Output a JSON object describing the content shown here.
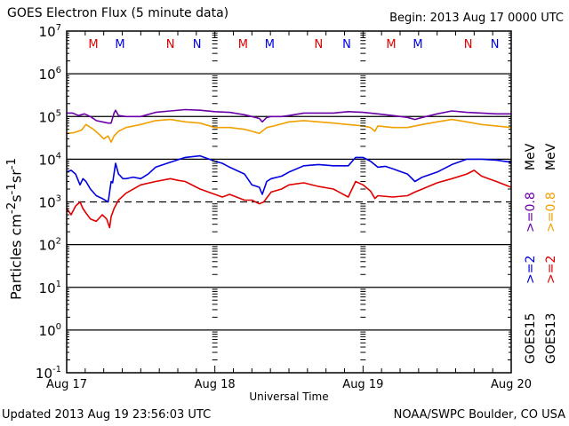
{
  "header": {
    "title": "GOES Electron Flux (5 minute data)",
    "begin": "Begin: 2013 Aug 17 0000 UTC"
  },
  "footer": {
    "updated": "Updated 2013 Aug 19 23:56:03 UTC",
    "credit": "NOAA/SWPC Boulder, CO USA"
  },
  "chart_data": {
    "type": "line",
    "title": "GOES Electron Flux (5 minute data)",
    "xlabel": "Universal Time",
    "ylabel": "Particles cm-2s-1sr-1",
    "yscale": "log",
    "ylim": [
      0.1,
      10000000
    ],
    "xlim": [
      0,
      3
    ],
    "x_units": "days since 2013 Aug 17 0000 UTC",
    "x_ticks": [
      {
        "value": 0,
        "label": "Aug 17"
      },
      {
        "value": 1,
        "label": "Aug 18"
      },
      {
        "value": 2,
        "label": "Aug 19"
      },
      {
        "value": 3,
        "label": "Aug 20"
      }
    ],
    "y_ticks": [
      {
        "exp": 7,
        "label": "10",
        "sup": "7"
      },
      {
        "exp": 6,
        "label": "10",
        "sup": "6"
      },
      {
        "exp": 5,
        "label": "10",
        "sup": "5"
      },
      {
        "exp": 4,
        "label": "10",
        "sup": "4"
      },
      {
        "exp": 3,
        "label": "10",
        "sup": "3"
      },
      {
        "exp": 2,
        "label": "10",
        "sup": "2"
      },
      {
        "exp": 1,
        "label": "10",
        "sup": "1"
      },
      {
        "exp": 0,
        "label": "10",
        "sup": "0"
      },
      {
        "exp": -1,
        "label": "10",
        "sup": "-1"
      }
    ],
    "grid": {
      "solid_decades": [
        6,
        5,
        4,
        2,
        1,
        0
      ],
      "dashed_decades": [
        3
      ]
    },
    "markers": [
      {
        "x": 0.18,
        "label": "M",
        "color": "#e00000"
      },
      {
        "x": 0.36,
        "label": "M",
        "color": "#0000e0"
      },
      {
        "x": 0.7,
        "label": "N",
        "color": "#e00000"
      },
      {
        "x": 0.88,
        "label": "N",
        "color": "#0000e0"
      },
      {
        "x": 1.19,
        "label": "M",
        "color": "#e00000"
      },
      {
        "x": 1.37,
        "label": "M",
        "color": "#0000e0"
      },
      {
        "x": 1.7,
        "label": "N",
        "color": "#e00000"
      },
      {
        "x": 1.89,
        "label": "N",
        "color": "#0000e0"
      },
      {
        "x": 2.19,
        "label": "M",
        "color": "#e00000"
      },
      {
        "x": 2.37,
        "label": "M",
        "color": "#0000e0"
      },
      {
        "x": 2.71,
        "label": "N",
        "color": "#e00000"
      },
      {
        "x": 2.89,
        "label": "N",
        "color": "#0000e0"
      }
    ],
    "legend": {
      "placement": "right",
      "entries": [
        {
          "text": "GOES15",
          "color": "#000000"
        },
        {
          "text": "GOES13",
          "color": "#000000"
        },
        {
          "text": ">=2",
          "color": "#0000e0"
        },
        {
          "text": ">=2",
          "color": "#e00000"
        },
        {
          "text": ">=0.8",
          "color": "#6a00a8"
        },
        {
          "text": ">=0.8",
          "color": "#f0a000"
        },
        {
          "text": "MeV",
          "color": "#000000"
        },
        {
          "text": "MeV",
          "color": "#000000"
        }
      ]
    },
    "series": [
      {
        "name": "GOES15 >=0.8 MeV",
        "color": "#6a00a8",
        "x": [
          0,
          0.04,
          0.08,
          0.12,
          0.16,
          0.2,
          0.24,
          0.28,
          0.3,
          0.32,
          0.33,
          0.35,
          0.4,
          0.5,
          0.6,
          0.7,
          0.8,
          0.9,
          1.0,
          1.1,
          1.2,
          1.25,
          1.3,
          1.32,
          1.35,
          1.38,
          1.45,
          1.5,
          1.6,
          1.7,
          1.8,
          1.9,
          2.0,
          2.1,
          2.2,
          2.3,
          2.35,
          2.4,
          2.5,
          2.6,
          2.7,
          2.8,
          2.9,
          3.0
        ],
        "y": [
          120000.0,
          120000.0,
          105000.0,
          115000.0,
          100000.0,
          80000.0,
          75000.0,
          70000.0,
          70000.0,
          120000.0,
          140000.0,
          105000.0,
          100000.0,
          100000.0,
          125000.0,
          135000.0,
          145000.0,
          140000.0,
          130000.0,
          125000.0,
          110000.0,
          100000.0,
          90000.0,
          75000.0,
          95000.0,
          100000.0,
          100000.0,
          105000.0,
          120000.0,
          120000.0,
          120000.0,
          130000.0,
          125000.0,
          115000.0,
          105000.0,
          95000.0,
          85000.0,
          95000.0,
          115000.0,
          135000.0,
          125000.0,
          120000.0,
          115000.0,
          115000.0
        ]
      },
      {
        "name": "GOES13 >=0.8 MeV",
        "color": "#f0a000",
        "x": [
          0,
          0.05,
          0.1,
          0.13,
          0.18,
          0.22,
          0.25,
          0.28,
          0.3,
          0.32,
          0.35,
          0.4,
          0.5,
          0.6,
          0.7,
          0.8,
          0.9,
          1.0,
          1.1,
          1.2,
          1.25,
          1.3,
          1.35,
          1.4,
          1.5,
          1.6,
          1.7,
          1.8,
          1.9,
          2.0,
          2.05,
          2.08,
          2.1,
          2.2,
          2.3,
          2.4,
          2.5,
          2.6,
          2.7,
          2.8,
          2.9,
          3.0
        ],
        "y": [
          40000.0,
          42000.0,
          48000.0,
          65000.0,
          50000.0,
          38000.0,
          30000.0,
          35000.0,
          25000.0,
          35000.0,
          45000.0,
          55000.0,
          65000.0,
          80000.0,
          85000.0,
          75000.0,
          70000.0,
          55000.0,
          55000.0,
          50000.0,
          45000.0,
          40000.0,
          55000.0,
          60000.0,
          75000.0,
          80000.0,
          75000.0,
          70000.0,
          65000.0,
          60000.0,
          55000.0,
          45000.0,
          60000.0,
          55000.0,
          55000.0,
          65000.0,
          75000.0,
          85000.0,
          75000.0,
          65000.0,
          60000.0,
          55000.0
        ]
      },
      {
        "name": "GOES15 >=2 MeV",
        "color": "#0000e0",
        "x": [
          0,
          0.03,
          0.06,
          0.09,
          0.11,
          0.13,
          0.16,
          0.2,
          0.24,
          0.28,
          0.3,
          0.31,
          0.33,
          0.35,
          0.38,
          0.4,
          0.45,
          0.5,
          0.55,
          0.6,
          0.7,
          0.8,
          0.9,
          1.0,
          1.05,
          1.1,
          1.2,
          1.25,
          1.3,
          1.32,
          1.35,
          1.38,
          1.45,
          1.5,
          1.6,
          1.7,
          1.8,
          1.9,
          1.95,
          2.0,
          2.05,
          2.1,
          2.15,
          2.2,
          2.3,
          2.35,
          2.4,
          2.5,
          2.6,
          2.7,
          2.8,
          2.9,
          3.0
        ],
        "y": [
          5000.0,
          5500.0,
          4500.0,
          2500.0,
          3500.0,
          3000.0,
          2000.0,
          1400.0,
          1200.0,
          1000.0,
          3000.0,
          2800.0,
          8000.0,
          4500.0,
          3500.0,
          3500.0,
          3800.0,
          3500.0,
          4500.0,
          6500.0,
          8500.0,
          11000.0,
          12000.0,
          9000.0,
          8000.0,
          6500.0,
          4500.0,
          2500.0,
          2200.0,
          1500.0,
          3000.0,
          3500.0,
          4000.0,
          5000.0,
          7000.0,
          7500.0,
          7000.0,
          7000.0,
          11000.0,
          11000.0,
          9000.0,
          6500.0,
          6800.0,
          6000.0,
          4500.0,
          3000.0,
          3800.0,
          5000.0,
          7500.0,
          10000.0,
          10000.0,
          9500.0,
          8500.0
        ]
      },
      {
        "name": "GOES13 >=2 MeV",
        "color": "#e00000",
        "x": [
          0,
          0.03,
          0.06,
          0.09,
          0.11,
          0.13,
          0.16,
          0.2,
          0.24,
          0.27,
          0.29,
          0.3,
          0.32,
          0.35,
          0.4,
          0.5,
          0.6,
          0.7,
          0.75,
          0.8,
          0.9,
          1.0,
          1.05,
          1.1,
          1.2,
          1.25,
          1.3,
          1.33,
          1.38,
          1.45,
          1.5,
          1.6,
          1.7,
          1.8,
          1.9,
          1.95,
          2.0,
          2.05,
          2.08,
          2.1,
          2.2,
          2.3,
          2.35,
          2.4,
          2.5,
          2.6,
          2.7,
          2.75,
          2.8,
          2.9,
          3.0
        ],
        "y": [
          700,
          500,
          800,
          1000,
          700,
          550,
          400,
          350,
          500,
          400,
          250,
          450,
          700,
          1100,
          1600,
          2500,
          3000,
          3500,
          3200,
          3000,
          2000,
          1500,
          1300,
          1500,
          1100,
          1100,
          900,
          1000,
          1700,
          2000,
          2500,
          2800,
          2300,
          2000,
          1300,
          3000,
          2500,
          1800,
          1200,
          1400,
          1300,
          1400,
          1700,
          2000,
          2800,
          3500,
          4500,
          5500,
          4000,
          3000,
          2200
        ]
      }
    ]
  }
}
